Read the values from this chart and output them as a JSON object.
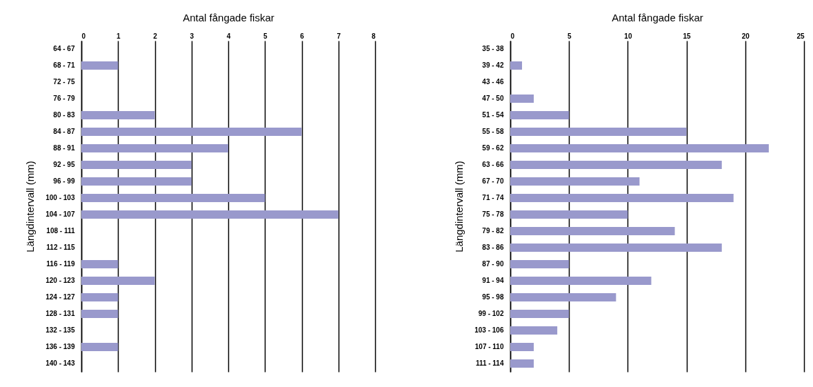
{
  "chart_data": [
    {
      "type": "bar",
      "orientation": "horizontal",
      "xlabel": "Antal fångade fiskar",
      "ylabel": "Längdintervall (mm)",
      "categories": [
        "64 - 67",
        "68 - 71",
        "72 - 75",
        "76 - 79",
        "80 - 83",
        "84 - 87",
        "88 - 91",
        "92 - 95",
        "96 - 99",
        "100 - 103",
        "104 - 107",
        "108 - 111",
        "112 - 115",
        "116 - 119",
        "120 - 123",
        "124 - 127",
        "128 - 131",
        "132 - 135",
        "136 - 139",
        "140 - 143"
      ],
      "series": [
        {
          "color": "#9999cc",
          "values": [
            0,
            1,
            0,
            0,
            2,
            6,
            4,
            3,
            3,
            5,
            7,
            0,
            0,
            1,
            2,
            1,
            1,
            0,
            1,
            0
          ]
        }
      ],
      "xlim": [
        0,
        8
      ],
      "xticks": [
        0,
        1,
        2,
        3,
        4,
        5,
        6,
        7,
        8
      ],
      "grid": "x"
    },
    {
      "type": "bar",
      "orientation": "horizontal",
      "xlabel": "Antal fångade fiskar",
      "ylabel": "Längdintervall (mm)",
      "categories": [
        "35 - 38",
        "39 - 42",
        "43 - 46",
        "47 - 50",
        "51 - 54",
        "55 - 58",
        "59 - 62",
        "63 - 66",
        "67 - 70",
        "71 - 74",
        "75 - 78",
        "79 - 82",
        "83 - 86",
        "87 - 90",
        "91 - 94",
        "95 - 98",
        "99 - 102",
        "103 - 106",
        "107 - 110",
        "111 - 114"
      ],
      "series": [
        {
          "color": "#9999cc",
          "values": [
            0,
            1,
            0,
            2,
            5,
            15,
            22,
            18,
            11,
            19,
            10,
            14,
            18,
            5,
            12,
            9,
            5,
            4,
            2,
            2
          ]
        }
      ],
      "xlim": [
        0,
        25
      ],
      "xticks": [
        0,
        5,
        10,
        15,
        20,
        25
      ],
      "grid": "x"
    }
  ]
}
